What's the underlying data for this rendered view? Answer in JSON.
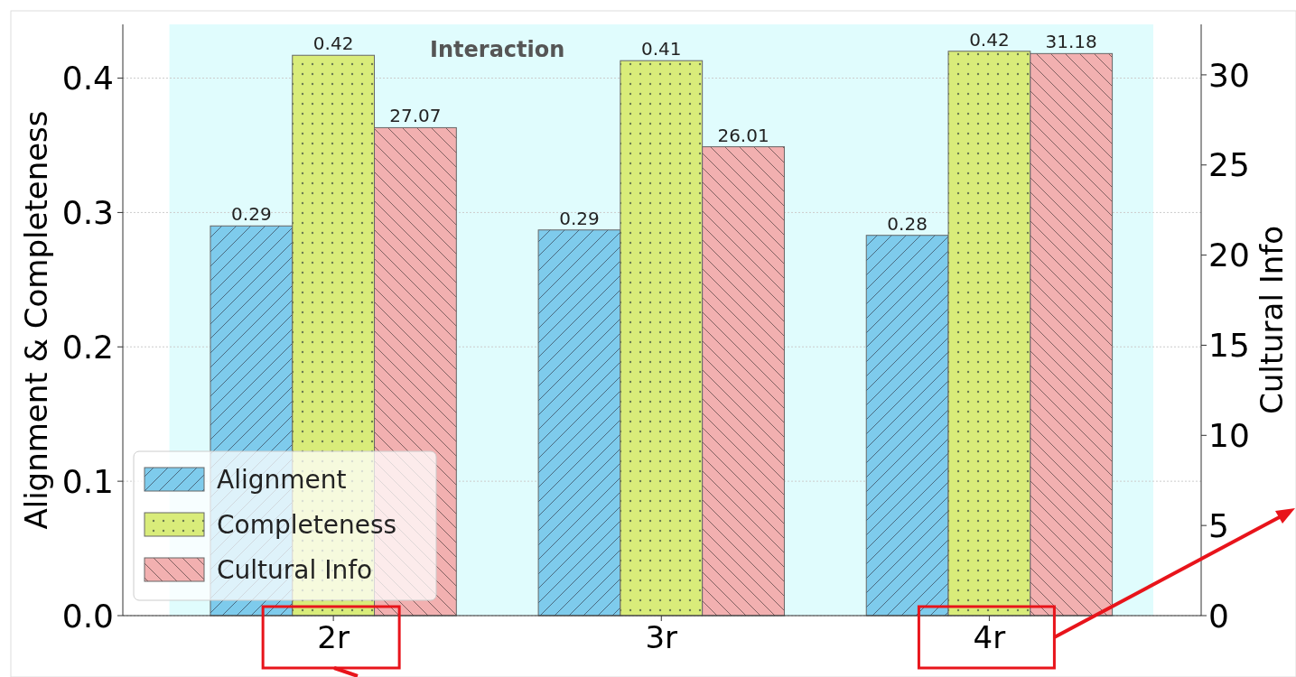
{
  "chart_data": {
    "type": "bar",
    "categories": [
      "2r",
      "3r",
      "4r"
    ],
    "ylabel": "Alignment & Completeness",
    "y2label": "Cultural Info",
    "ylim": [
      0,
      0.44
    ],
    "yticks": [
      {
        "value": 0,
        "label": "0.0"
      },
      0.1,
      0.2,
      0.3,
      0.4
    ],
    "y2lim": [
      0,
      32.8
    ],
    "y2ticks": [
      0,
      5,
      10,
      15,
      20,
      25,
      30
    ],
    "grid": "y",
    "legend": "bottom left",
    "series": [
      {
        "name": "Alignment",
        "color": "#7ecbec",
        "values": [
          0.29,
          0.287,
          0.283
        ],
        "value_labels": [
          "0.29",
          "0.29",
          "0.28"
        ]
      },
      {
        "name": "Completeness",
        "color": "#d9ec7a",
        "values": [
          0.417,
          0.413,
          0.42
        ],
        "value_labels": [
          "0.42",
          "0.41",
          "0.42"
        ]
      },
      {
        "name": "Cultural Info",
        "color": "#f2b0b0",
        "axis": "y2",
        "values": [
          27.07,
          26.01,
          31.18
        ],
        "value_labels": [
          "27.07",
          "26.01",
          "31.18"
        ]
      }
    ],
    "bands": [
      {
        "axis": "x",
        "from": "2r",
        "to": "4r",
        "label": "Interaction",
        "color": "#e0fcfd"
      }
    ]
  }
}
